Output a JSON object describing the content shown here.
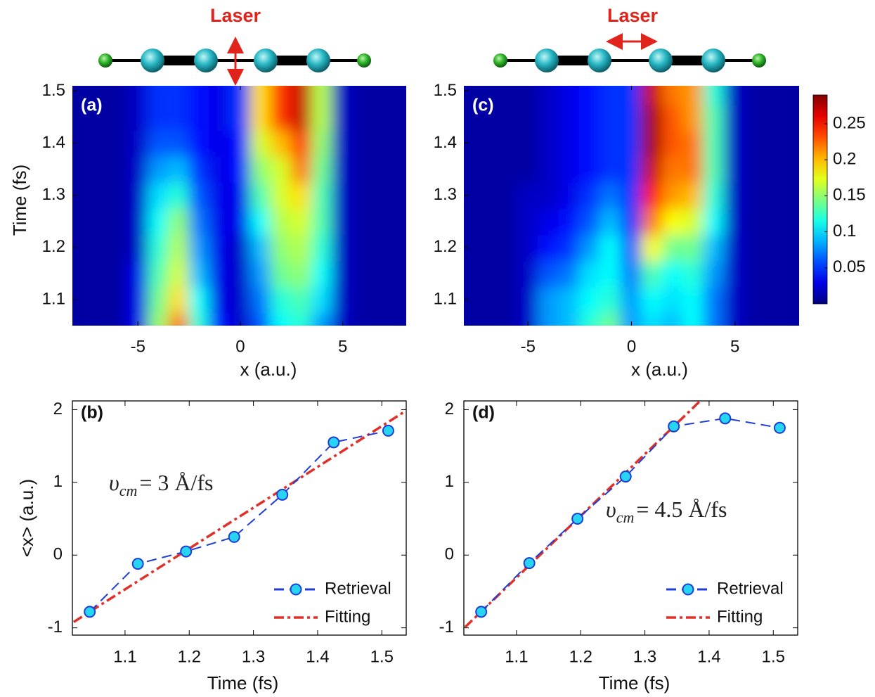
{
  "chart_data": [
    {
      "type": "heatmap",
      "panel": "(a)",
      "molecule_label": "Laser",
      "ylabel": "Time (fs)",
      "xlabel": "x (a.u.)",
      "x": [
        -8,
        -7,
        -6,
        -5,
        -4,
        -3,
        -2,
        -1,
        0,
        1,
        2,
        3,
        4,
        5,
        6,
        7,
        8
      ],
      "y": [
        1.05,
        1.1,
        1.15,
        1.2,
        1.25,
        1.3,
        1.35,
        1.4,
        1.45,
        1.5
      ],
      "z": [
        [
          0.01,
          0.01,
          0.01,
          0.03,
          0.15,
          0.22,
          0.12,
          0.04,
          0.02,
          0.06,
          0.11,
          0.12,
          0.08,
          0.02,
          0.01,
          0.01,
          0.01
        ],
        [
          0.01,
          0.01,
          0.01,
          0.03,
          0.14,
          0.19,
          0.11,
          0.03,
          0.02,
          0.07,
          0.12,
          0.13,
          0.1,
          0.02,
          0.01,
          0.01,
          0.01
        ],
        [
          0.01,
          0.01,
          0.01,
          0.03,
          0.13,
          0.17,
          0.09,
          0.03,
          0.02,
          0.08,
          0.14,
          0.15,
          0.11,
          0.02,
          0.01,
          0.01,
          0.01
        ],
        [
          0.01,
          0.01,
          0.01,
          0.02,
          0.12,
          0.16,
          0.08,
          0.03,
          0.02,
          0.09,
          0.15,
          0.16,
          0.12,
          0.02,
          0.01,
          0.01,
          0.01
        ],
        [
          0.01,
          0.01,
          0.01,
          0.02,
          0.11,
          0.15,
          0.07,
          0.03,
          0.03,
          0.11,
          0.16,
          0.17,
          0.13,
          0.02,
          0.01,
          0.01,
          0.01
        ],
        [
          0.01,
          0.01,
          0.01,
          0.02,
          0.1,
          0.12,
          0.06,
          0.03,
          0.03,
          0.13,
          0.17,
          0.19,
          0.13,
          0.02,
          0.01,
          0.01,
          0.01
        ],
        [
          0.01,
          0.01,
          0.01,
          0.02,
          0.08,
          0.09,
          0.05,
          0.03,
          0.04,
          0.15,
          0.17,
          0.22,
          0.14,
          0.02,
          0.01,
          0.01,
          0.01
        ],
        [
          0.01,
          0.01,
          0.01,
          0.02,
          0.06,
          0.06,
          0.04,
          0.03,
          0.04,
          0.17,
          0.2,
          0.24,
          0.15,
          0.02,
          0.01,
          0.01,
          0.01
        ],
        [
          0.01,
          0.01,
          0.01,
          0.02,
          0.05,
          0.05,
          0.04,
          0.03,
          0.05,
          0.19,
          0.24,
          0.27,
          0.16,
          0.02,
          0.01,
          0.01,
          0.01
        ],
        [
          0.01,
          0.01,
          0.01,
          0.02,
          0.05,
          0.05,
          0.04,
          0.03,
          0.05,
          0.19,
          0.24,
          0.27,
          0.16,
          0.02,
          0.01,
          0.01,
          0.01
        ]
      ],
      "xlim": [
        -8.2,
        8.1
      ],
      "ylim": [
        1.05,
        1.51
      ],
      "zlim": [
        0,
        0.29
      ],
      "xticks": [
        -5,
        0,
        5
      ],
      "yticks": [
        1.1,
        1.2,
        1.3,
        1.4,
        1.5
      ],
      "colormap": "jet"
    },
    {
      "type": "heatmap",
      "panel": "(c)",
      "molecule_label": "Laser",
      "xlabel": "x (a.u.)",
      "x": [
        -8,
        -7,
        -6,
        -5,
        -4,
        -3,
        -2,
        -1,
        0,
        1,
        2,
        3,
        4,
        5,
        6,
        7,
        8
      ],
      "y": [
        1.05,
        1.1,
        1.15,
        1.2,
        1.25,
        1.3,
        1.35,
        1.4,
        1.45,
        1.5
      ],
      "z": [
        [
          0.01,
          0.01,
          0.01,
          0.02,
          0.08,
          0.09,
          0.12,
          0.14,
          0.08,
          0.1,
          0.09,
          0.11,
          0.07,
          0.02,
          0.01,
          0.01,
          0.01
        ],
        [
          0.01,
          0.01,
          0.01,
          0.02,
          0.08,
          0.09,
          0.11,
          0.12,
          0.08,
          0.11,
          0.1,
          0.11,
          0.07,
          0.02,
          0.01,
          0.01,
          0.01
        ],
        [
          0.01,
          0.01,
          0.01,
          0.02,
          0.06,
          0.07,
          0.1,
          0.11,
          0.07,
          0.13,
          0.11,
          0.12,
          0.08,
          0.02,
          0.01,
          0.01,
          0.01
        ],
        [
          0.01,
          0.01,
          0.01,
          0.02,
          0.04,
          0.05,
          0.08,
          0.11,
          0.06,
          0.18,
          0.14,
          0.14,
          0.09,
          0.02,
          0.01,
          0.01,
          0.01
        ],
        [
          0.01,
          0.01,
          0.01,
          0.02,
          0.03,
          0.04,
          0.06,
          0.09,
          0.05,
          0.22,
          0.18,
          0.17,
          0.11,
          0.02,
          0.01,
          0.01,
          0.01
        ],
        [
          0.01,
          0.01,
          0.01,
          0.02,
          0.02,
          0.03,
          0.05,
          0.07,
          0.05,
          0.25,
          0.21,
          0.2,
          0.12,
          0.02,
          0.01,
          0.01,
          0.01
        ],
        [
          0.01,
          0.01,
          0.01,
          0.01,
          0.02,
          0.03,
          0.04,
          0.05,
          0.05,
          0.27,
          0.22,
          0.22,
          0.13,
          0.02,
          0.01,
          0.01,
          0.01
        ],
        [
          0.01,
          0.01,
          0.01,
          0.01,
          0.02,
          0.03,
          0.04,
          0.05,
          0.05,
          0.28,
          0.23,
          0.22,
          0.13,
          0.02,
          0.01,
          0.01,
          0.01
        ],
        [
          0.01,
          0.01,
          0.01,
          0.01,
          0.02,
          0.03,
          0.04,
          0.05,
          0.05,
          0.28,
          0.23,
          0.21,
          0.13,
          0.02,
          0.01,
          0.01,
          0.01
        ],
        [
          0.01,
          0.01,
          0.01,
          0.01,
          0.02,
          0.03,
          0.04,
          0.05,
          0.05,
          0.27,
          0.22,
          0.21,
          0.12,
          0.02,
          0.01,
          0.01,
          0.01
        ]
      ],
      "xlim": [
        -8.1,
        8.1
      ],
      "ylim": [
        1.05,
        1.51
      ],
      "zlim": [
        0,
        0.29
      ],
      "xticks": [
        -5,
        0,
        5
      ],
      "yticks": [
        1.1,
        1.2,
        1.3,
        1.4,
        1.5
      ],
      "colormap": "jet",
      "colorbar": true,
      "zticks": [
        0.05,
        0.1,
        0.15,
        0.2,
        0.25
      ]
    },
    {
      "type": "line",
      "panel": "(b)",
      "ylabel": "<x> (a.u.)",
      "xlabel": "Time (fs)",
      "annotation": {
        "symbol": "υ",
        "subscript": "cm",
        "text": "= 3 Å/fs"
      },
      "series": [
        {
          "name": "Retrieval",
          "color": "#1f3fd4",
          "marker_color": "#27d4f2",
          "style": "dashed",
          "x": [
            1.045,
            1.12,
            1.195,
            1.27,
            1.345,
            1.425,
            1.51
          ],
          "values": [
            -0.78,
            -0.12,
            0.05,
            0.25,
            0.83,
            1.55,
            1.71
          ]
        },
        {
          "name": "Fitting",
          "color": "#e0302a",
          "style": "dashdot",
          "x": [
            1.02,
            1.535
          ],
          "values": [
            -0.92,
            1.97
          ]
        }
      ],
      "xlim": [
        1.018,
        1.538
      ],
      "ylim": [
        -1.1,
        2.12
      ],
      "xticks": [
        1.1,
        1.2,
        1.3,
        1.4,
        1.5
      ],
      "yticks": [
        -1,
        0,
        1,
        2
      ],
      "legend": "lower right"
    },
    {
      "type": "line",
      "panel": "(d)",
      "xlabel": "Time (fs)",
      "annotation": {
        "symbol": "υ",
        "subscript": "cm",
        "text": "= 4.5 Å/fs"
      },
      "series": [
        {
          "name": "Retrieval",
          "color": "#1f3fd4",
          "marker_color": "#27d4f2",
          "style": "dashed",
          "x": [
            1.045,
            1.12,
            1.195,
            1.27,
            1.345,
            1.425,
            1.51
          ],
          "values": [
            -0.78,
            -0.11,
            0.5,
            1.08,
            1.77,
            1.88,
            1.75
          ]
        },
        {
          "name": "Fitting",
          "color": "#e0302a",
          "style": "dashdot",
          "x": [
            1.02,
            1.385
          ],
          "values": [
            -0.99,
            2.11
          ]
        }
      ],
      "xlim": [
        1.018,
        1.538
      ],
      "ylim": [
        -1.1,
        2.12
      ],
      "xticks": [
        1.1,
        1.2,
        1.3,
        1.4,
        1.5
      ],
      "yticks": [
        -1,
        0,
        1,
        2
      ],
      "legend": "lower right"
    }
  ]
}
